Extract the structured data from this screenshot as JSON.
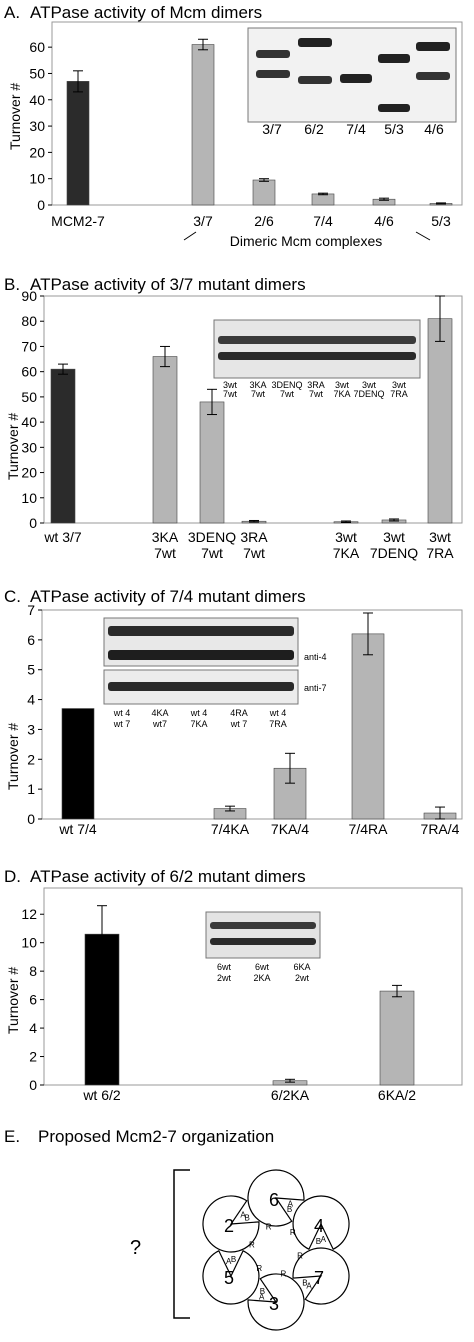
{
  "chart_data": [
    {
      "type": "bar",
      "letter": "A.",
      "title": "ATPase activity of Mcm dimers",
      "ylabel": "Turnover #",
      "ylim": [
        0,
        65
      ],
      "yticks": [
        0,
        10,
        20,
        30,
        40,
        50,
        60
      ],
      "categories": [
        "MCM2-7",
        "3/7",
        "2/6",
        "7/4",
        "4/6",
        "5/3"
      ],
      "values": [
        47,
        61,
        9.5,
        4.2,
        2.2,
        0.6
      ],
      "errors": [
        4,
        2,
        0.5,
        0.3,
        0.4,
        0.2
      ],
      "colors": [
        "#2b2b2b",
        "#b5b5b5",
        "#b5b5b5",
        "#b5b5b5",
        "#b5b5b5",
        "#b5b5b5"
      ],
      "group_label": "Dimeric Mcm complexes",
      "gel_lanes": [
        "3/7",
        "6/2",
        "7/4",
        "5/3",
        "4/6"
      ]
    },
    {
      "type": "bar",
      "letter": "B.",
      "title": "ATPase activity of 3/7 mutant dimers",
      "ylabel": "Turnover #",
      "ylim": [
        0,
        90
      ],
      "yticks": [
        0,
        10,
        20,
        30,
        40,
        50,
        60,
        70,
        80,
        90
      ],
      "categories": [
        [
          "wt 3/7"
        ],
        [
          "3KA",
          "7wt"
        ],
        [
          "3DENQ",
          "7wt"
        ],
        [
          "3RA",
          "7wt"
        ],
        [
          "3wt",
          "7KA"
        ],
        [
          "3wt",
          "7DENQ"
        ],
        [
          "3wt",
          "7RA"
        ]
      ],
      "values": [
        61,
        66,
        48,
        0.7,
        0.5,
        1.2,
        81
      ],
      "errors": [
        2,
        4,
        5,
        0.3,
        0.3,
        0.4,
        9
      ],
      "colors": [
        "#2b2b2b",
        "#b5b5b5",
        "#b5b5b5",
        "#b5b5b5",
        "#b5b5b5",
        "#b5b5b5",
        "#b5b5b5"
      ],
      "gel_lanes": [
        [
          "3wt",
          "7wt"
        ],
        [
          "3KA",
          "7wt"
        ],
        [
          "3DENQ",
          "7wt"
        ],
        [
          "3RA",
          "7wt"
        ],
        [
          "3wt",
          "7KA"
        ],
        [
          "3wt",
          "7DENQ"
        ],
        [
          "3wt",
          "7RA"
        ]
      ]
    },
    {
      "type": "bar",
      "letter": "C.",
      "title": "ATPase activity of 7/4 mutant dimers",
      "ylabel": "Turnover #",
      "ylim": [
        0,
        7
      ],
      "yticks": [
        0,
        1,
        2,
        3,
        4,
        5,
        6,
        7
      ],
      "categories": [
        "wt 7/4",
        "7/4KA",
        "7KA/4",
        "7/4RA",
        "7RA/4"
      ],
      "values": [
        3.7,
        0.35,
        1.7,
        6.2,
        0.2
      ],
      "errors": [
        0,
        0.08,
        0.5,
        0.7,
        0.2
      ],
      "colors": [
        "#000000",
        "#b5b5b5",
        "#b5b5b5",
        "#b5b5b5",
        "#b5b5b5"
      ],
      "gel_lanes": [
        [
          "wt 4",
          "wt 7"
        ],
        [
          "4KA",
          "wt7"
        ],
        [
          "wt 4",
          "7KA"
        ],
        [
          "4RA",
          "wt 7"
        ],
        [
          "wt 4",
          "7RA"
        ]
      ],
      "gel_rows": [
        "",
        "anti-4",
        "anti-7"
      ]
    },
    {
      "type": "bar",
      "letter": "D.",
      "title": "ATPase activity of 6/2 mutant dimers",
      "ylabel": "Turnover #",
      "ylim": [
        0,
        13
      ],
      "yticks": [
        0,
        2,
        4,
        6,
        8,
        10,
        12
      ],
      "categories": [
        "wt 6/2",
        "6/2KA",
        "6KA/2"
      ],
      "values": [
        10.6,
        0.3,
        6.6
      ],
      "errors": [
        2,
        0.1,
        0.4
      ],
      "colors": [
        "#000000",
        "#b5b5b5",
        "#b5b5b5"
      ],
      "gel_lanes": [
        [
          "6wt",
          "2wt"
        ],
        [
          "6wt",
          "2KA"
        ],
        [
          "6KA",
          "2wt"
        ]
      ]
    }
  ],
  "panel_e": {
    "letter": "E.",
    "title": "Proposed Mcm2-7 organization",
    "question": "?",
    "subunits": [
      "2",
      "6",
      "4",
      "7",
      "3",
      "5"
    ],
    "site_letters": [
      "A",
      "B",
      "R"
    ]
  }
}
